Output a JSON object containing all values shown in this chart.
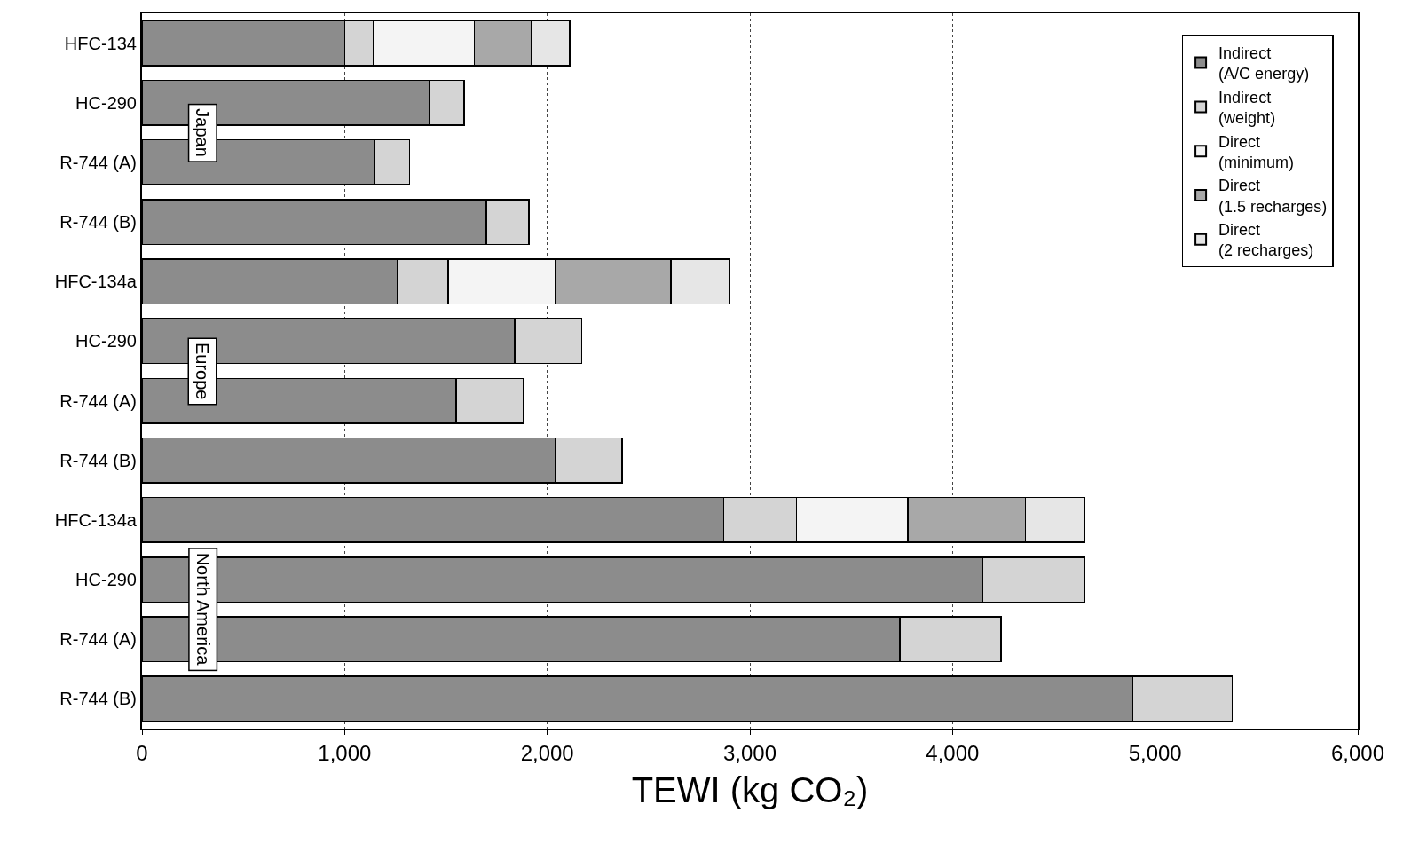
{
  "chart_data": {
    "type": "bar",
    "orientation": "horizontal",
    "stacked": true,
    "categories": [
      "HFC-134",
      "HC-290",
      "R-744 (A)",
      "R-744 (B)",
      "HFC-134a",
      "HC-290",
      "R-744 (A)",
      "R-744 (B)",
      "HFC-134a",
      "HC-290",
      "R-744 (A)",
      "R-744 (B)"
    ],
    "series": [
      {
        "name": "Indirect\n(A/C energy)",
        "color": "#8c8c8c",
        "values": [
          1000,
          1420,
          1150,
          1700,
          1260,
          1840,
          1550,
          2040,
          2870,
          4150,
          3740,
          4890
        ]
      },
      {
        "name": "Indirect\n(weight)",
        "color": "#d4d4d4",
        "values": [
          140,
          170,
          170,
          210,
          250,
          330,
          330,
          330,
          360,
          500,
          500,
          490
        ]
      },
      {
        "name": "Direct\n(minimum)",
        "color": "#f4f4f4",
        "values": [
          500,
          null,
          null,
          null,
          530,
          null,
          null,
          null,
          550,
          null,
          null,
          null
        ]
      },
      {
        "name": "Direct\n(1.5 recharges)",
        "color": "#a8a8a8",
        "values": [
          280,
          null,
          null,
          null,
          570,
          null,
          null,
          null,
          580,
          null,
          null,
          null
        ]
      },
      {
        "name": "Direct\n(2 recharges)",
        "color": "#e6e6e6",
        "values": [
          190,
          null,
          null,
          null,
          290,
          null,
          null,
          null,
          290,
          null,
          null,
          null
        ]
      }
    ],
    "annotations": [
      "Japan",
      "Europe",
      "North America"
    ],
    "xlabel": "TEWI (kg CO₂)",
    "xlim": [
      0,
      6000
    ],
    "xticks": [
      0,
      {
        "value": 1000,
        "label": "1,000"
      },
      {
        "value": 2000,
        "label": "2,000"
      },
      {
        "value": 3000,
        "label": "3,000"
      },
      {
        "value": 4000,
        "label": "4,000"
      },
      {
        "value": 5000,
        "label": "5,000"
      },
      {
        "value": 6000,
        "label": "6,000"
      }
    ],
    "grid": "x",
    "legend": "top right"
  }
}
